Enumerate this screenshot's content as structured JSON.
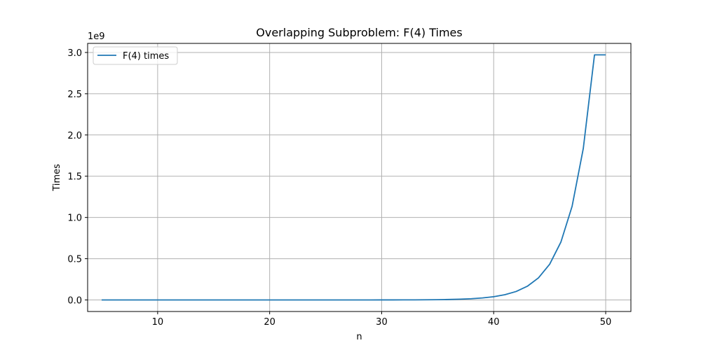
{
  "chart_data": {
    "type": "line",
    "title": "Overlapping Subproblem: F(4) Times",
    "xlabel": "n",
    "ylabel": "Times",
    "y_offset_text": "1e9",
    "y_scale_factor": 1000000000,
    "xlim": [
      3.75,
      52.25
    ],
    "ylim": [
      -0.14,
      3.11
    ],
    "x_ticks": [
      10,
      20,
      30,
      40,
      50
    ],
    "y_ticks": [
      0.0,
      0.5,
      1.0,
      1.5,
      2.0,
      2.5,
      3.0
    ],
    "grid": true,
    "legend_position": "top-left",
    "series": [
      {
        "name": "F(4) times",
        "color": "#1f77b4",
        "x": [
          5,
          6,
          7,
          8,
          9,
          10,
          11,
          12,
          13,
          14,
          15,
          16,
          17,
          18,
          19,
          20,
          21,
          22,
          23,
          24,
          25,
          26,
          27,
          28,
          29,
          30,
          31,
          32,
          33,
          34,
          35,
          36,
          37,
          38,
          39,
          40,
          41,
          42,
          43,
          44,
          45,
          46,
          47,
          48,
          49,
          50
        ],
        "y": [
          2e-09,
          3e-09,
          5e-09,
          8e-09,
          1.3e-08,
          2.1e-08,
          3.4e-08,
          5.5e-08,
          8.9e-08,
          1.44e-07,
          2.33e-07,
          3.77e-07,
          6.1e-07,
          9.87e-07,
          1.597e-06,
          2.584e-06,
          4.181e-06,
          6.765e-06,
          1.0946e-05,
          1.7711e-05,
          2.8657e-05,
          4.6368e-05,
          7.5025e-05,
          0.000121393,
          0.000196418,
          0.000317811,
          0.000514229,
          0.00083204,
          0.001346269,
          0.002178309,
          0.003524578,
          0.005702887,
          0.009227465,
          0.014930352,
          0.024157817,
          0.039088169,
          0.063245986,
          0.102334155,
          0.165580141,
          0.267914296,
          0.433494437,
          0.701408733,
          1.13490317,
          1.836311903,
          2.971215073,
          2.971215073
        ]
      }
    ]
  }
}
